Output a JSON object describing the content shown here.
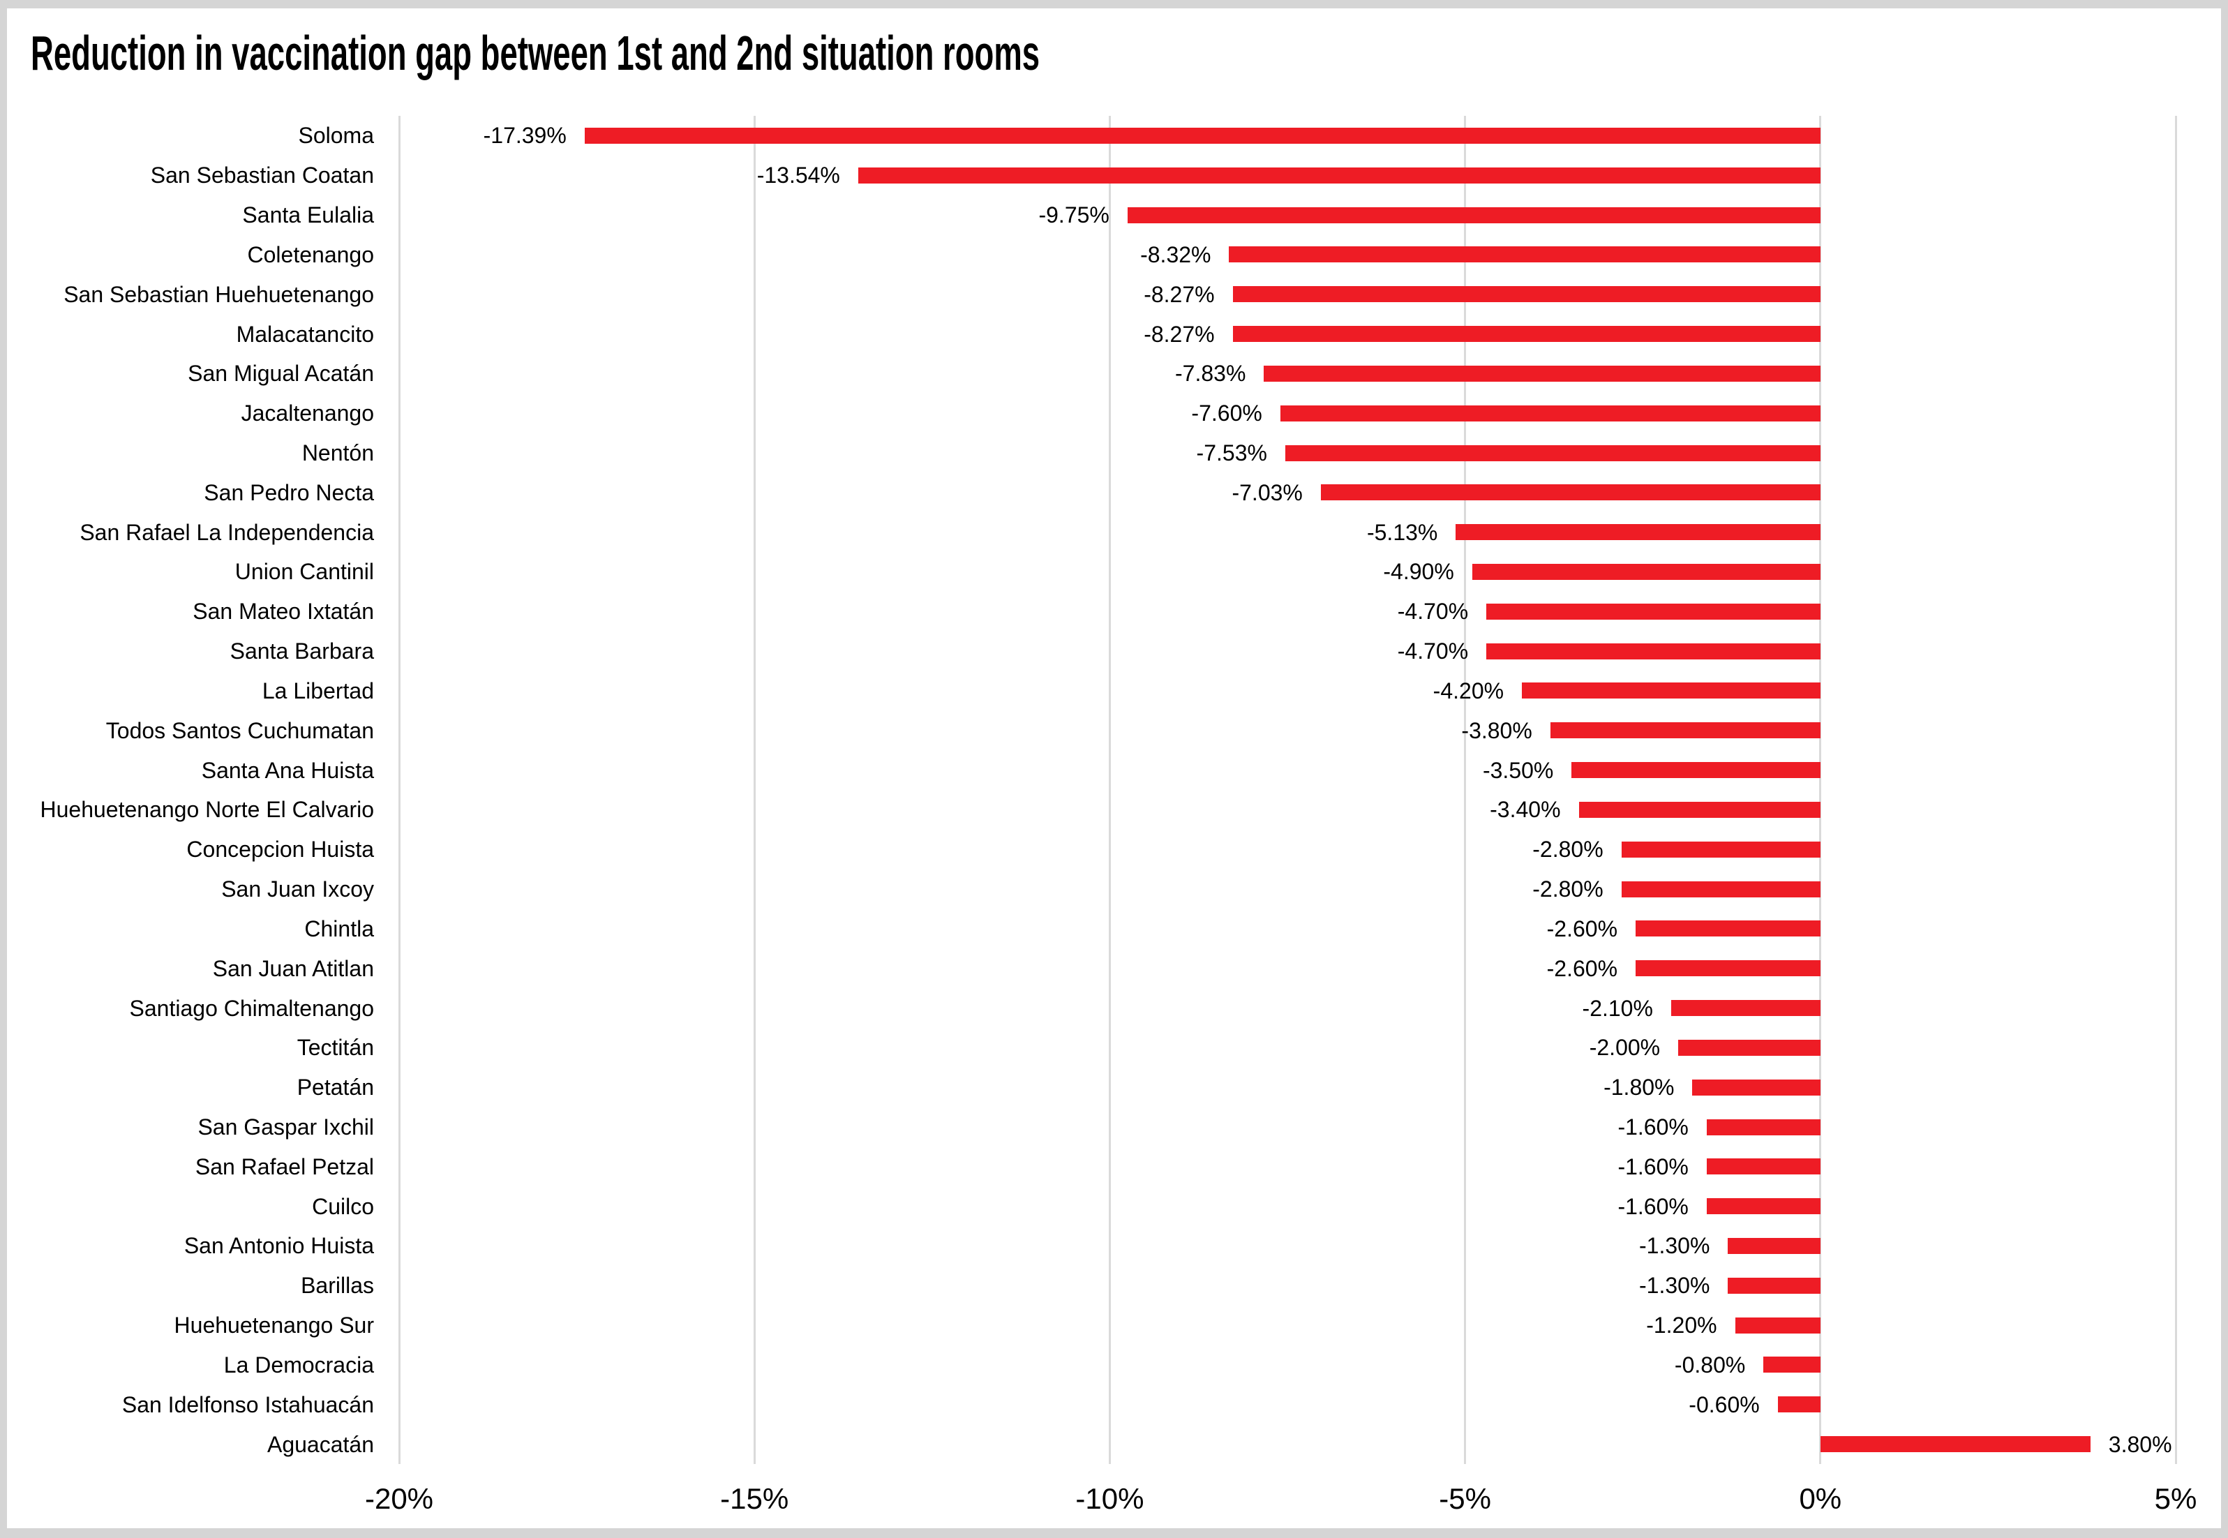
{
  "window": {
    "background_color": "#ffffff",
    "frame_color": "#d5d5d5"
  },
  "chart_data": {
    "type": "bar",
    "orientation": "horizontal",
    "title": "Reduction in vaccination gap between 1st and 2nd situation rooms",
    "categories": [
      "Soloma",
      "San Sebastian Coatan",
      "Santa Eulalia",
      "Coletenango",
      "San Sebastian Huehuetenango",
      "Malacatancito",
      "San Migual Acatán",
      "Jacaltenango",
      "Nentón",
      "San Pedro Necta",
      "San Rafael La Independencia",
      "Union Cantinil",
      "San Mateo Ixtatán",
      "Santa Barbara",
      "La Libertad",
      "Todos Santos Cuchumatan",
      "Santa Ana Huista",
      "Huehuetenango Norte El Calvario",
      "Concepcion Huista",
      "San Juan Ixcoy",
      "Chintla",
      "San Juan Atitlan",
      "Santiago Chimaltenango",
      "Tectitán",
      "Petatán",
      "San Gaspar Ixchil",
      "San Rafael Petzal",
      "Cuilco",
      "San Antonio Huista",
      "Barillas",
      "Huehuetenango Sur",
      "La Democracia",
      "San Idelfonso Istahuacán",
      "Aguacatán"
    ],
    "values": [
      -17.39,
      -13.54,
      -9.75,
      -8.32,
      -8.27,
      -8.27,
      -7.83,
      -7.6,
      -7.53,
      -7.03,
      -5.13,
      -4.9,
      -4.7,
      -4.7,
      -4.2,
      -3.8,
      -3.5,
      -3.4,
      -2.8,
      -2.8,
      -2.6,
      -2.6,
      -2.1,
      -2.0,
      -1.8,
      -1.6,
      -1.6,
      -1.6,
      -1.3,
      -1.3,
      -1.2,
      -0.8,
      -0.6,
      3.8
    ],
    "data_labels": [
      "-17.39%",
      "-13.54%",
      "-9.75%",
      "-8.32%",
      "-8.27%",
      "-8.27%",
      "-7.83%",
      "-7.60%",
      "-7.53%",
      "-7.03%",
      "-5.13%",
      "-4.90%",
      "-4.70%",
      "-4.70%",
      "-4.20%",
      "-3.80%",
      "-3.50%",
      "-3.40%",
      "-2.80%",
      "-2.80%",
      "-2.60%",
      "-2.60%",
      "-2.10%",
      "-2.00%",
      "-1.80%",
      "-1.60%",
      "-1.60%",
      "-1.60%",
      "-1.30%",
      "-1.30%",
      "-1.20%",
      "-0.80%",
      "-0.60%",
      "3.80%"
    ],
    "data_label_position": "outside-end",
    "x_ticks": [
      {
        "value": -20,
        "label": "-20%"
      },
      {
        "value": -15,
        "label": "-15%"
      },
      {
        "value": -10,
        "label": "-10%"
      },
      {
        "value": -5,
        "label": "-5%"
      },
      {
        "value": 0,
        "label": "0%"
      },
      {
        "value": 5,
        "label": "5%"
      }
    ],
    "xlim": [
      -20,
      5
    ],
    "grid": true,
    "legend": false,
    "bar_color": "#ee1c25",
    "gridline_color": "#dadada",
    "text_color": "#000000"
  }
}
